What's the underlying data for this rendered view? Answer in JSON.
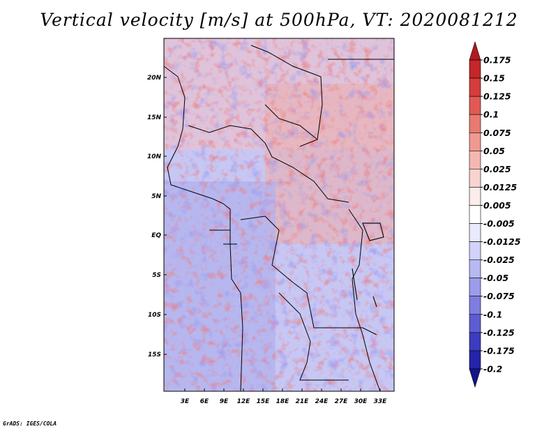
{
  "title": "Vertical velocity [m/s] at 500hPa, VT: 2020081212",
  "credit": "GrADS: IGES/COLA",
  "lat_labels": [
    "20N",
    "15N",
    "10N",
    "5N",
    "EQ",
    "5S",
    "10S",
    "15S"
  ],
  "lon_labels": [
    "3E",
    "6E",
    "9E",
    "12E",
    "15E",
    "18E",
    "21E",
    "24E",
    "27E",
    "30E",
    "33E"
  ],
  "colorbar": {
    "labels": [
      "0.175",
      "0.15",
      "0.125",
      "0.1",
      "0.075",
      "0.05",
      "0.025",
      "0.0125",
      "0.005",
      "-0.005",
      "-0.0125",
      "-0.025",
      "-0.05",
      "-0.075",
      "-0.1",
      "-0.125",
      "-0.175",
      "-0.2"
    ],
    "colors": [
      "#b01a20",
      "#c4272a",
      "#d43d3b",
      "#e05a53",
      "#e87a70",
      "#ef9a90",
      "#f4b8b0",
      "#f8d4cf",
      "#fceceb",
      "#ffffff",
      "#eaeaff",
      "#d2d2fa",
      "#b8b8f2",
      "#9c9cea",
      "#7e7ee0",
      "#5d5dd2",
      "#3c3cc0",
      "#2424a8",
      "#14148a"
    ]
  }
}
